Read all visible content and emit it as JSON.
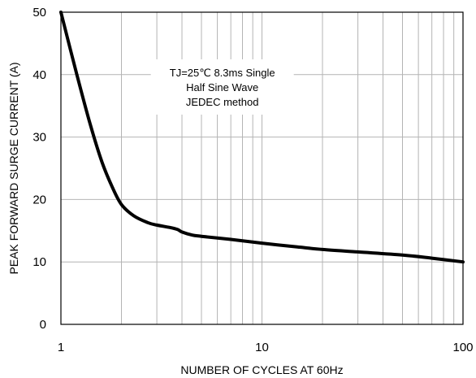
{
  "chart_data": {
    "type": "line",
    "title": "",
    "xlabel": "NUMBER OF CYCLES AT 60Hz",
    "ylabel": "PEAK FORWARD SURGE CURRENT (A)",
    "x_scale": "log",
    "xlim": [
      1,
      100
    ],
    "ylim": [
      0,
      50
    ],
    "x_ticks": [
      "1",
      "10",
      "100"
    ],
    "y_ticks": [
      "0",
      "10",
      "20",
      "30",
      "40",
      "50"
    ],
    "grid": true,
    "legend": "none",
    "annotation": [
      "TJ=25℃ 8.3ms Single",
      "Half  Sine Wave",
      "JEDEC method"
    ],
    "series": [
      {
        "x": [
          1,
          1.2,
          1.4,
          1.6,
          1.8,
          2,
          2.3,
          2.7,
          3,
          3.5,
          3.8,
          4,
          4.5,
          5,
          7,
          10,
          15,
          20,
          30,
          50,
          70,
          100
        ],
        "y": [
          50,
          40,
          32,
          26,
          22,
          19.2,
          17.4,
          16.3,
          15.9,
          15.5,
          15.2,
          14.8,
          14.3,
          14.1,
          13.6,
          13.0,
          12.4,
          12.0,
          11.6,
          11.1,
          10.6,
          10.0
        ]
      }
    ],
    "line_color": "#000000",
    "grid_color": "#b4b4b4"
  }
}
